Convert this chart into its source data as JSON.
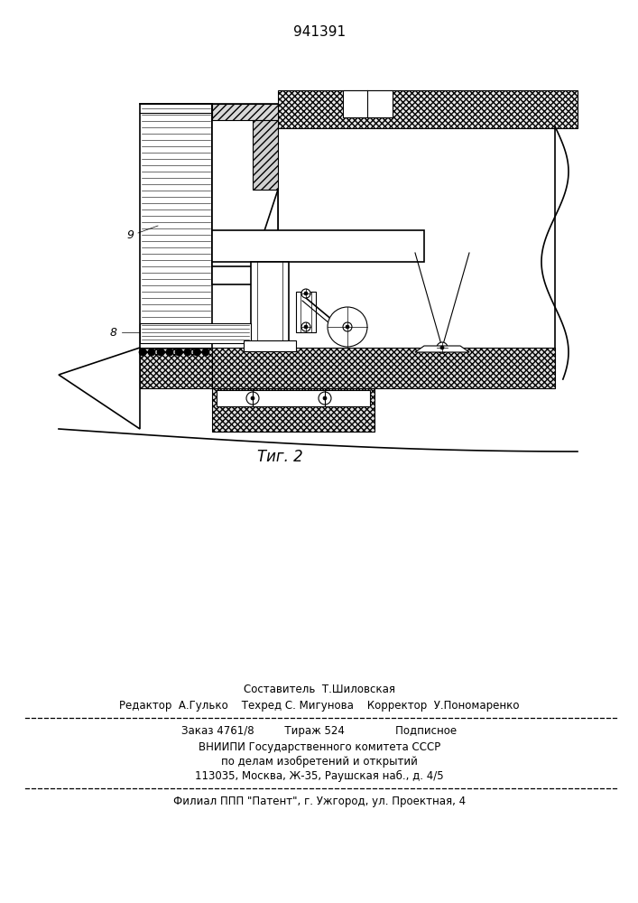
{
  "patent_number": "941391",
  "fig_label": "Τиг. 2",
  "label_9": "9",
  "label_8": "8",
  "bg_color": "#ffffff",
  "line_color": "#000000",
  "footer_line1": "Составитель  Т.Шиловская",
  "footer_line2": "Редактор  А.Гулько    Техред С. Мигунова    Корректор  У.Пономаренко",
  "footer_line3": "Заказ 4761/8         Тираж 524               Подписное",
  "footer_line4": "ВНИИПИ Государственного комитета СССР",
  "footer_line5": "по делам изобретений и открытий",
  "footer_line6": "113035, Москва, Ж-35, Раушская наб., д. 4/5",
  "footer_line7": "Филиал ППП \"Патент\", г. Ужгород, ул. Проектная, 4"
}
